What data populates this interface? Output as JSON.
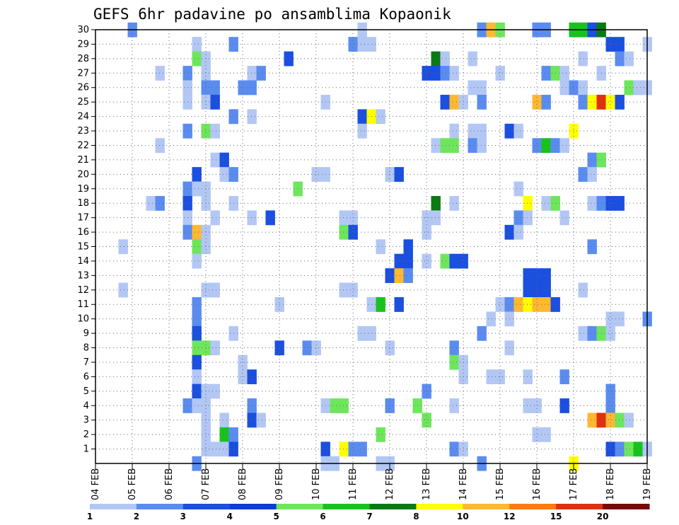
{
  "chart_data": {
    "type": "heatmap",
    "title": "GEFS 6hr padavine po ansamblima Kopaonik",
    "xlabel": "",
    "ylabel": "",
    "x_tick_labels": [
      "04 FEB",
      "05 FEB",
      "06 FEB",
      "07 FEB",
      "08 FEB",
      "09 FEB",
      "10 FEB",
      "11 FEB",
      "12 FEB",
      "13 FEB",
      "14 FEB",
      "15 FEB",
      "16 FEB",
      "17 FEB",
      "18 FEB",
      "19 FEB"
    ],
    "y_tick_labels": [
      "1",
      "2",
      "3",
      "4",
      "5",
      "6",
      "7",
      "8",
      "9",
      "10",
      "11",
      "12",
      "13",
      "14",
      "15",
      "16",
      "17",
      "18",
      "19",
      "20",
      "21",
      "22",
      "23",
      "24",
      "25",
      "26",
      "27",
      "28",
      "29",
      "30"
    ],
    "xlim": [
      0,
      60
    ],
    "ylim": [
      0,
      30
    ],
    "x_units": "6-hour steps from 04 FEB 00Z",
    "y_units": "ensemble member",
    "grid": true,
    "colorbar": {
      "labels": [
        "1",
        "2",
        "3",
        "4",
        "5",
        "6",
        "7",
        "8",
        "10",
        "12",
        "15",
        "20"
      ],
      "colors": [
        "#b3c7f5",
        "#5a8cf0",
        "#1b4fe0",
        "#0f3bd6",
        "#6ee65c",
        "#18c21e",
        "#0a7a14",
        "#ffff00",
        "#ffb830",
        "#ff7a10",
        "#e03010",
        "#7a0a0a"
      ]
    },
    "cells": [
      [
        4,
        30,
        2
      ],
      [
        29,
        30,
        1
      ],
      [
        42,
        30,
        2
      ],
      [
        43,
        30,
        10
      ],
      [
        44,
        30,
        5
      ],
      [
        48,
        30,
        2
      ],
      [
        49,
        30,
        2
      ],
      [
        52,
        30,
        6
      ],
      [
        53,
        30,
        6
      ],
      [
        54,
        30,
        3
      ],
      [
        55,
        30,
        7
      ],
      [
        11,
        29,
        1
      ],
      [
        15,
        29,
        2
      ],
      [
        28,
        29,
        2
      ],
      [
        29,
        29,
        1
      ],
      [
        30,
        29,
        1
      ],
      [
        56,
        29,
        3
      ],
      [
        57,
        29,
        3
      ],
      [
        60,
        29,
        1
      ],
      [
        11,
        28,
        5
      ],
      [
        12,
        28,
        1
      ],
      [
        21,
        28,
        3
      ],
      [
        37,
        28,
        7
      ],
      [
        38,
        28,
        1
      ],
      [
        41,
        28,
        1
      ],
      [
        53,
        28,
        1
      ],
      [
        57,
        28,
        2
      ],
      [
        58,
        28,
        1
      ],
      [
        7,
        27,
        1
      ],
      [
        10,
        27,
        2
      ],
      [
        12,
        27,
        1
      ],
      [
        17,
        27,
        1
      ],
      [
        18,
        27,
        2
      ],
      [
        36,
        27,
        3
      ],
      [
        37,
        27,
        3
      ],
      [
        38,
        27,
        2
      ],
      [
        39,
        27,
        1
      ],
      [
        44,
        27,
        1
      ],
      [
        49,
        27,
        2
      ],
      [
        50,
        27,
        5
      ],
      [
        51,
        27,
        1
      ],
      [
        55,
        27,
        1
      ],
      [
        10,
        26,
        1
      ],
      [
        12,
        26,
        2
      ],
      [
        13,
        26,
        2
      ],
      [
        16,
        26,
        2
      ],
      [
        17,
        26,
        2
      ],
      [
        41,
        26,
        1
      ],
      [
        42,
        26,
        1
      ],
      [
        51,
        26,
        1
      ],
      [
        52,
        26,
        2
      ],
      [
        53,
        26,
        1
      ],
      [
        58,
        26,
        5
      ],
      [
        59,
        26,
        1
      ],
      [
        60,
        26,
        1
      ],
      [
        10,
        25,
        1
      ],
      [
        12,
        25,
        1
      ],
      [
        13,
        25,
        3
      ],
      [
        25,
        25,
        1
      ],
      [
        38,
        25,
        3
      ],
      [
        39,
        25,
        11
      ],
      [
        40,
        25,
        1
      ],
      [
        42,
        25,
        2
      ],
      [
        48,
        25,
        10
      ],
      [
        49,
        25,
        2
      ],
      [
        53,
        25,
        2
      ],
      [
        54,
        25,
        8
      ],
      [
        55,
        25,
        15
      ],
      [
        56,
        25,
        8
      ],
      [
        57,
        25,
        3
      ],
      [
        15,
        24,
        2
      ],
      [
        17,
        24,
        1
      ],
      [
        29,
        24,
        3
      ],
      [
        30,
        24,
        8
      ],
      [
        31,
        24,
        1
      ],
      [
        10,
        23,
        2
      ],
      [
        12,
        23,
        5
      ],
      [
        13,
        23,
        1
      ],
      [
        29,
        23,
        1
      ],
      [
        39,
        23,
        1
      ],
      [
        41,
        23,
        1
      ],
      [
        42,
        23,
        1
      ],
      [
        45,
        23,
        3
      ],
      [
        46,
        23,
        1
      ],
      [
        52,
        23,
        8
      ],
      [
        7,
        22,
        1
      ],
      [
        37,
        22,
        1
      ],
      [
        38,
        22,
        5
      ],
      [
        39,
        22,
        5
      ],
      [
        41,
        22,
        2
      ],
      [
        42,
        22,
        1
      ],
      [
        48,
        22,
        2
      ],
      [
        49,
        22,
        6
      ],
      [
        50,
        22,
        2
      ],
      [
        51,
        22,
        1
      ],
      [
        13,
        21,
        1
      ],
      [
        14,
        21,
        3
      ],
      [
        54,
        21,
        2
      ],
      [
        55,
        21,
        5
      ],
      [
        11,
        20,
        3
      ],
      [
        14,
        20,
        1
      ],
      [
        15,
        20,
        2
      ],
      [
        24,
        20,
        1
      ],
      [
        25,
        20,
        1
      ],
      [
        32,
        20,
        1
      ],
      [
        33,
        20,
        3
      ],
      [
        53,
        20,
        2
      ],
      [
        54,
        20,
        1
      ],
      [
        10,
        19,
        2
      ],
      [
        11,
        19,
        1
      ],
      [
        12,
        19,
        1
      ],
      [
        22,
        19,
        5
      ],
      [
        46,
        19,
        1
      ],
      [
        6,
        18,
        1
      ],
      [
        7,
        18,
        2
      ],
      [
        10,
        18,
        3
      ],
      [
        12,
        18,
        1
      ],
      [
        15,
        18,
        1
      ],
      [
        37,
        18,
        7
      ],
      [
        39,
        18,
        1
      ],
      [
        47,
        18,
        8
      ],
      [
        49,
        18,
        1
      ],
      [
        50,
        18,
        5
      ],
      [
        54,
        18,
        1
      ],
      [
        55,
        18,
        2
      ],
      [
        56,
        18,
        3
      ],
      [
        57,
        18,
        3
      ],
      [
        10,
        17,
        1
      ],
      [
        13,
        17,
        1
      ],
      [
        17,
        17,
        1
      ],
      [
        19,
        17,
        3
      ],
      [
        27,
        17,
        1
      ],
      [
        28,
        17,
        1
      ],
      [
        36,
        17,
        1
      ],
      [
        37,
        17,
        1
      ],
      [
        46,
        17,
        2
      ],
      [
        47,
        17,
        1
      ],
      [
        51,
        17,
        1
      ],
      [
        10,
        16,
        2
      ],
      [
        11,
        16,
        10
      ],
      [
        12,
        16,
        1
      ],
      [
        27,
        16,
        5
      ],
      [
        28,
        16,
        3
      ],
      [
        36,
        16,
        1
      ],
      [
        45,
        16,
        3
      ],
      [
        46,
        16,
        1
      ],
      [
        3,
        15,
        1
      ],
      [
        11,
        15,
        5
      ],
      [
        12,
        15,
        1
      ],
      [
        31,
        15,
        1
      ],
      [
        34,
        15,
        3
      ],
      [
        54,
        15,
        2
      ],
      [
        11,
        14,
        1
      ],
      [
        33,
        14,
        3
      ],
      [
        34,
        14,
        3
      ],
      [
        36,
        14,
        1
      ],
      [
        38,
        14,
        5
      ],
      [
        39,
        14,
        3
      ],
      [
        40,
        14,
        3
      ],
      [
        3,
        12,
        1
      ],
      [
        12,
        12,
        1
      ],
      [
        13,
        12,
        1
      ],
      [
        27,
        12,
        1
      ],
      [
        28,
        12,
        1
      ],
      [
        47,
        12,
        3
      ],
      [
        48,
        12,
        3
      ],
      [
        49,
        12,
        3
      ],
      [
        53,
        12,
        1
      ],
      [
        32,
        13,
        3
      ],
      [
        33,
        13,
        10
      ],
      [
        34,
        13,
        2
      ],
      [
        47,
        13,
        3
      ],
      [
        48,
        13,
        3
      ],
      [
        49,
        13,
        3
      ],
      [
        11,
        11,
        2
      ],
      [
        20,
        11,
        1
      ],
      [
        30,
        11,
        1
      ],
      [
        31,
        11,
        6
      ],
      [
        33,
        11,
        3
      ],
      [
        44,
        11,
        1
      ],
      [
        45,
        11,
        2
      ],
      [
        46,
        11,
        10
      ],
      [
        47,
        11,
        8
      ],
      [
        48,
        11,
        10
      ],
      [
        49,
        11,
        10
      ],
      [
        50,
        11,
        3
      ],
      [
        11,
        10,
        2
      ],
      [
        43,
        10,
        1
      ],
      [
        45,
        10,
        1
      ],
      [
        56,
        10,
        1
      ],
      [
        57,
        10,
        1
      ],
      [
        60,
        10,
        2
      ],
      [
        11,
        9,
        3
      ],
      [
        15,
        9,
        1
      ],
      [
        29,
        9,
        1
      ],
      [
        30,
        9,
        1
      ],
      [
        42,
        9,
        2
      ],
      [
        53,
        9,
        1
      ],
      [
        54,
        9,
        2
      ],
      [
        55,
        9,
        5
      ],
      [
        56,
        9,
        1
      ],
      [
        11,
        8,
        5
      ],
      [
        12,
        8,
        5
      ],
      [
        13,
        8,
        1
      ],
      [
        20,
        8,
        3
      ],
      [
        23,
        8,
        2
      ],
      [
        24,
        8,
        1
      ],
      [
        32,
        8,
        1
      ],
      [
        39,
        8,
        2
      ],
      [
        45,
        8,
        1
      ],
      [
        11,
        7,
        3
      ],
      [
        16,
        7,
        1
      ],
      [
        39,
        7,
        5
      ],
      [
        40,
        7,
        1
      ],
      [
        11,
        6,
        1
      ],
      [
        16,
        6,
        1
      ],
      [
        17,
        6,
        3
      ],
      [
        40,
        6,
        1
      ],
      [
        43,
        6,
        1
      ],
      [
        44,
        6,
        1
      ],
      [
        47,
        6,
        1
      ],
      [
        51,
        6,
        2
      ],
      [
        11,
        5,
        3
      ],
      [
        12,
        5,
        1
      ],
      [
        13,
        5,
        1
      ],
      [
        36,
        5,
        2
      ],
      [
        56,
        5,
        2
      ],
      [
        10,
        4,
        2
      ],
      [
        11,
        4,
        1
      ],
      [
        12,
        4,
        1
      ],
      [
        17,
        4,
        2
      ],
      [
        25,
        4,
        1
      ],
      [
        26,
        4,
        5
      ],
      [
        27,
        4,
        5
      ],
      [
        32,
        4,
        2
      ],
      [
        35,
        4,
        5
      ],
      [
        39,
        4,
        1
      ],
      [
        47,
        4,
        1
      ],
      [
        48,
        4,
        1
      ],
      [
        51,
        4,
        3
      ],
      [
        56,
        4,
        2
      ],
      [
        12,
        3,
        1
      ],
      [
        14,
        3,
        1
      ],
      [
        17,
        3,
        3
      ],
      [
        18,
        3,
        1
      ],
      [
        36,
        3,
        5
      ],
      [
        54,
        3,
        11
      ],
      [
        55,
        3,
        15
      ],
      [
        56,
        3,
        10
      ],
      [
        57,
        3,
        5
      ],
      [
        58,
        3,
        1
      ],
      [
        12,
        2,
        1
      ],
      [
        14,
        2,
        6
      ],
      [
        15,
        2,
        2
      ],
      [
        31,
        2,
        5
      ],
      [
        48,
        2,
        1
      ],
      [
        49,
        2,
        1
      ],
      [
        12,
        1,
        1
      ],
      [
        13,
        1,
        1
      ],
      [
        14,
        1,
        1
      ],
      [
        15,
        1,
        3
      ],
      [
        25,
        1,
        3
      ],
      [
        27,
        1,
        8
      ],
      [
        28,
        1,
        2
      ],
      [
        29,
        1,
        2
      ],
      [
        39,
        1,
        2
      ],
      [
        40,
        1,
        1
      ],
      [
        56,
        1,
        3
      ],
      [
        57,
        1,
        2
      ],
      [
        58,
        1,
        5
      ],
      [
        59,
        1,
        6
      ],
      [
        60,
        1,
        1
      ],
      [
        11,
        0,
        2
      ],
      [
        25,
        0,
        1
      ],
      [
        26,
        0,
        1
      ],
      [
        31,
        0,
        1
      ],
      [
        32,
        0,
        1
      ],
      [
        42,
        0,
        2
      ],
      [
        52,
        0,
        8
      ]
    ]
  }
}
